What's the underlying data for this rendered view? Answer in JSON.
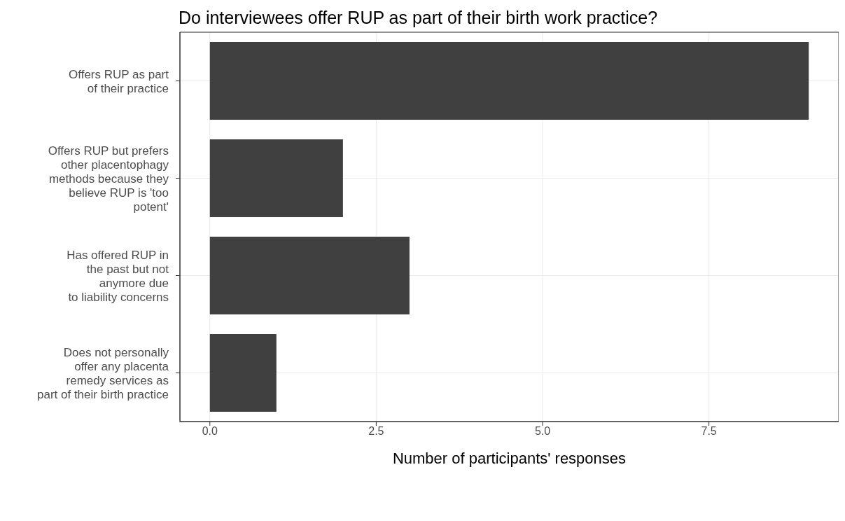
{
  "chart_data": {
    "type": "bar",
    "orientation": "horizontal",
    "title": "Do interviewees offer RUP as part of their birth work practice?",
    "xlabel": "Number of participants' responses",
    "categories": [
      "Offers RUP as part\nof their practice",
      "Offers RUP but prefers\nother placentophagy\nmethods because they\nbelieve RUP is 'too\npotent'",
      "Has offered RUP in\nthe past but not\nanymore due\nto liability concerns",
      "Does not personally\noffer any placenta\nremedy services as\npart of their birth practice"
    ],
    "values": [
      9,
      2,
      3,
      1
    ],
    "color": "#404040",
    "xlim": [
      -0.45,
      9.45
    ],
    "xticks": [
      {
        "value": 0,
        "label": "0.0"
      },
      {
        "value": 2.5,
        "label": "2.5"
      },
      {
        "value": 5,
        "label": "5.0"
      },
      {
        "value": 7.5,
        "label": "7.5"
      }
    ],
    "grid": true
  }
}
